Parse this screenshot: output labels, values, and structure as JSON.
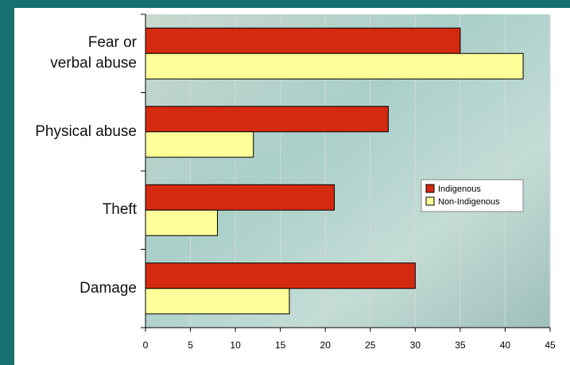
{
  "chart_data": {
    "type": "hbar",
    "categories": [
      "Fear or\nverbal abuse",
      "Physical abuse",
      "Theft",
      "Damage"
    ],
    "series": [
      {
        "name": "Indigenous",
        "color": "#d42a10",
        "values": [
          35,
          27,
          21,
          30
        ]
      },
      {
        "name": "Non-Indigenous",
        "color": "#ffff99",
        "values": [
          42,
          12,
          8,
          16
        ]
      }
    ],
    "xlim": [
      0,
      45
    ],
    "xticks": [
      0,
      5,
      10,
      15,
      20,
      25,
      30,
      35,
      40,
      45
    ],
    "grid": true
  }
}
